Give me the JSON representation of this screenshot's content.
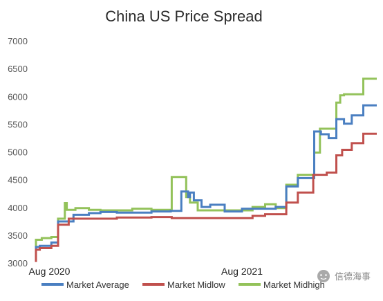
{
  "chart_data": {
    "type": "line",
    "title": "China US Price Spread",
    "xlabel": "",
    "ylabel": "",
    "ylim": [
      3000,
      7000
    ],
    "yticks": [
      3000,
      3500,
      4000,
      4500,
      5000,
      5500,
      6000,
      6500,
      7000
    ],
    "grid": false,
    "legend_position": "bottom",
    "x_annotations": [
      {
        "label": "Aug 2020",
        "x": 0.07
      },
      {
        "label": "Aug 2021",
        "x": 1.07
      }
    ],
    "series": [
      {
        "name": "Market Average",
        "color": "#4a7fc1",
        "points": [
          [
            0.0,
            3100
          ],
          [
            0.0,
            3300
          ],
          [
            0.02,
            3300
          ],
          [
            0.02,
            3320
          ],
          [
            0.08,
            3320
          ],
          [
            0.08,
            3380
          ],
          [
            0.115,
            3380
          ],
          [
            0.115,
            3760
          ],
          [
            0.195,
            3760
          ],
          [
            0.195,
            3880
          ],
          [
            0.275,
            3880
          ],
          [
            0.275,
            3910
          ],
          [
            0.335,
            3910
          ],
          [
            0.335,
            3930
          ],
          [
            0.42,
            3930
          ],
          [
            0.42,
            3920
          ],
          [
            0.6,
            3920
          ],
          [
            0.6,
            3940
          ],
          [
            0.7,
            3940
          ],
          [
            0.7,
            3950
          ],
          [
            0.755,
            3950
          ],
          [
            0.755,
            4300
          ],
          [
            0.79,
            4300
          ],
          [
            0.79,
            4200
          ],
          [
            0.8,
            4200
          ],
          [
            0.8,
            4280
          ],
          [
            0.82,
            4280
          ],
          [
            0.82,
            4140
          ],
          [
            0.86,
            4140
          ],
          [
            0.86,
            4020
          ],
          [
            0.905,
            4020
          ],
          [
            0.905,
            4060
          ],
          [
            0.98,
            4060
          ],
          [
            0.98,
            3940
          ],
          [
            1.07,
            3940
          ],
          [
            1.07,
            3990
          ],
          [
            1.165,
            3990
          ],
          [
            1.165,
            3990
          ],
          [
            1.245,
            3990
          ],
          [
            1.245,
            4020
          ],
          [
            1.3,
            4020
          ],
          [
            1.3,
            4390
          ],
          [
            1.36,
            4390
          ],
          [
            1.36,
            4540
          ],
          [
            1.445,
            4540
          ],
          [
            1.445,
            5380
          ],
          [
            1.48,
            5380
          ],
          [
            1.48,
            5330
          ],
          [
            1.52,
            5330
          ],
          [
            1.52,
            5260
          ],
          [
            1.56,
            5260
          ],
          [
            1.56,
            5600
          ],
          [
            1.6,
            5600
          ],
          [
            1.6,
            5520
          ],
          [
            1.64,
            5520
          ],
          [
            1.64,
            5670
          ],
          [
            1.7,
            5670
          ],
          [
            1.7,
            5850
          ],
          [
            1.77,
            5850
          ]
        ]
      },
      {
        "name": "Market Midlow",
        "color": "#c0504d",
        "points": [
          [
            0.0,
            3030
          ],
          [
            0.0,
            3250
          ],
          [
            0.02,
            3250
          ],
          [
            0.02,
            3280
          ],
          [
            0.08,
            3280
          ],
          [
            0.08,
            3320
          ],
          [
            0.115,
            3320
          ],
          [
            0.115,
            3700
          ],
          [
            0.17,
            3700
          ],
          [
            0.17,
            3810
          ],
          [
            0.42,
            3810
          ],
          [
            0.42,
            3830
          ],
          [
            0.6,
            3830
          ],
          [
            0.6,
            3840
          ],
          [
            0.705,
            3840
          ],
          [
            0.705,
            3820
          ],
          [
            1.125,
            3820
          ],
          [
            1.125,
            3860
          ],
          [
            1.19,
            3860
          ],
          [
            1.19,
            3890
          ],
          [
            1.3,
            3890
          ],
          [
            1.3,
            4100
          ],
          [
            1.36,
            4100
          ],
          [
            1.36,
            4280
          ],
          [
            1.44,
            4280
          ],
          [
            1.44,
            4600
          ],
          [
            1.51,
            4600
          ],
          [
            1.51,
            4640
          ],
          [
            1.56,
            4640
          ],
          [
            1.56,
            4950
          ],
          [
            1.59,
            4950
          ],
          [
            1.59,
            5050
          ],
          [
            1.64,
            5050
          ],
          [
            1.64,
            5170
          ],
          [
            1.7,
            5170
          ],
          [
            1.7,
            5340
          ],
          [
            1.77,
            5340
          ]
        ]
      },
      {
        "name": "Market Midhigh",
        "color": "#93c25a",
        "points": [
          [
            0.0,
            3200
          ],
          [
            0.0,
            3430
          ],
          [
            0.03,
            3430
          ],
          [
            0.03,
            3460
          ],
          [
            0.08,
            3460
          ],
          [
            0.08,
            3480
          ],
          [
            0.115,
            3480
          ],
          [
            0.115,
            3810
          ],
          [
            0.15,
            3810
          ],
          [
            0.15,
            4090
          ],
          [
            0.16,
            4090
          ],
          [
            0.16,
            3970
          ],
          [
            0.205,
            3970
          ],
          [
            0.205,
            4000
          ],
          [
            0.275,
            4000
          ],
          [
            0.275,
            3970
          ],
          [
            0.335,
            3970
          ],
          [
            0.335,
            3960
          ],
          [
            0.5,
            3960
          ],
          [
            0.5,
            3990
          ],
          [
            0.6,
            3990
          ],
          [
            0.6,
            3970
          ],
          [
            0.705,
            3970
          ],
          [
            0.705,
            4560
          ],
          [
            0.78,
            4560
          ],
          [
            0.78,
            4200
          ],
          [
            0.8,
            4200
          ],
          [
            0.8,
            4100
          ],
          [
            0.84,
            4100
          ],
          [
            0.84,
            3960
          ],
          [
            1.125,
            3960
          ],
          [
            1.125,
            4020
          ],
          [
            1.19,
            4020
          ],
          [
            1.19,
            4070
          ],
          [
            1.245,
            4070
          ],
          [
            1.245,
            4000
          ],
          [
            1.3,
            4000
          ],
          [
            1.3,
            4420
          ],
          [
            1.36,
            4420
          ],
          [
            1.36,
            4600
          ],
          [
            1.445,
            4600
          ],
          [
            1.445,
            5000
          ],
          [
            1.475,
            5000
          ],
          [
            1.475,
            5430
          ],
          [
            1.56,
            5430
          ],
          [
            1.56,
            5900
          ],
          [
            1.58,
            5900
          ],
          [
            1.58,
            6030
          ],
          [
            1.6,
            6030
          ],
          [
            1.6,
            6050
          ],
          [
            1.7,
            6050
          ],
          [
            1.7,
            6330
          ],
          [
            1.77,
            6330
          ]
        ]
      }
    ],
    "x_range": [
      0.0,
      1.77
    ]
  },
  "watermark": {
    "text": "信德海事",
    "icon": "wechat-logo-icon",
    "color": "#9a9a9a"
  }
}
